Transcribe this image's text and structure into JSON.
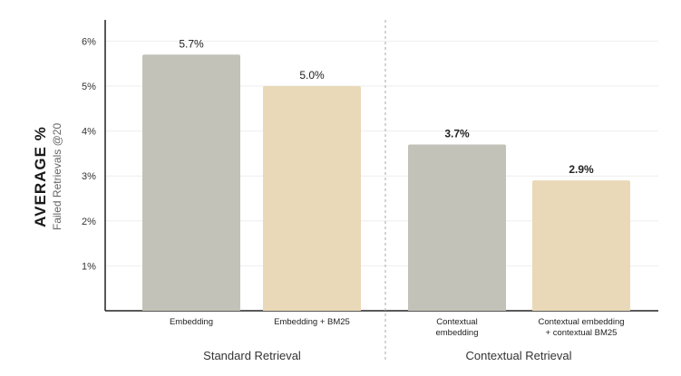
{
  "chart_data": {
    "type": "bar",
    "ylabel": "AVERAGE %",
    "ylabel_sub": "Failed Retrievals @20",
    "ylim": [
      0,
      6
    ],
    "yticks": [
      "1%",
      "2%",
      "3%",
      "4%",
      "5%",
      "6%"
    ],
    "grid": true,
    "categories": [
      "Embedding",
      "Embedding + BM25",
      "Contextual embedding",
      "Contextual embedding + contextual BM25"
    ],
    "category_lines": [
      [
        "Embedding"
      ],
      [
        "Embedding + BM25"
      ],
      [
        "Contextual",
        "embedding"
      ],
      [
        "Contextual embedding",
        "+ contextual BM25"
      ]
    ],
    "values": [
      5.7,
      5.0,
      3.7,
      2.9
    ],
    "value_labels": [
      "5.7%",
      "5.0%",
      "3.7%",
      "2.9%"
    ],
    "bar_colors": [
      "#c2c2b8",
      "#ead9b8",
      "#c2c2b8",
      "#ead9b8"
    ],
    "groups": [
      {
        "label": "Standard Retrieval",
        "categories": [
          0,
          1
        ]
      },
      {
        "label": "Contextual Retrieval",
        "categories": [
          2,
          3
        ]
      }
    ],
    "colors": {
      "axis": "#222222",
      "grid": "#eeeeee",
      "divider": "#aaaaaa"
    }
  }
}
